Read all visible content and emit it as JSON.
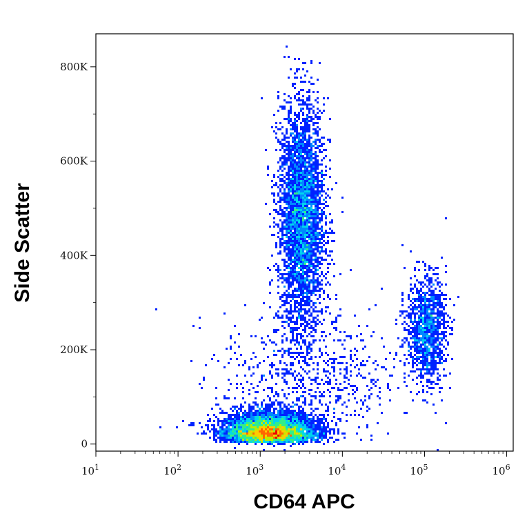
{
  "chart_data": {
    "type": "scatter",
    "subtype": "flow-cytometry-density-dot-plot",
    "xlabel": "CD64 APC",
    "ylabel": "Side Scatter",
    "x_scale": "log10",
    "y_scale": "linear",
    "xlim": [
      10,
      1200000
    ],
    "ylim": [
      -15000,
      870000
    ],
    "x_ticks": [
      {
        "value": 10,
        "base": "10",
        "exp": "1"
      },
      {
        "value": 100,
        "base": "10",
        "exp": "2"
      },
      {
        "value": 1000,
        "base": "10",
        "exp": "3"
      },
      {
        "value": 10000,
        "base": "10",
        "exp": "4"
      },
      {
        "value": 100000,
        "base": "10",
        "exp": "5"
      },
      {
        "value": 1000000,
        "base": "10",
        "exp": "6"
      }
    ],
    "y_ticks": [
      {
        "value": 0,
        "label": "0"
      },
      {
        "value": 200000,
        "label": "200K"
      },
      {
        "value": 400000,
        "label": "400K"
      },
      {
        "value": 600000,
        "label": "600K"
      },
      {
        "value": 800000,
        "label": "800K"
      }
    ],
    "grid": false,
    "legend": "none",
    "density_colormap": [
      "#0000cc",
      "#0022ff",
      "#0088ff",
      "#00d4ee",
      "#33ee88",
      "#bbee00",
      "#ffcc00",
      "#ff6600",
      "#ee0000"
    ],
    "populations": [
      {
        "x_median": 1300,
        "y_median": 40000,
        "x_log_sd": 0.28,
        "y_sd": 28000,
        "events": 5200
      },
      {
        "x_median": 3200,
        "y_median": 480000,
        "x_log_sd": 0.14,
        "y_sd": 120000,
        "events": 4000
      },
      {
        "x_median": 105000,
        "y_median": 245000,
        "x_log_sd": 0.12,
        "y_sd": 55000,
        "events": 1300
      },
      {
        "x_median": 4000,
        "y_median": 140000,
        "x_log_sd": 0.55,
        "y_sd": 70000,
        "events": 700
      }
    ]
  }
}
